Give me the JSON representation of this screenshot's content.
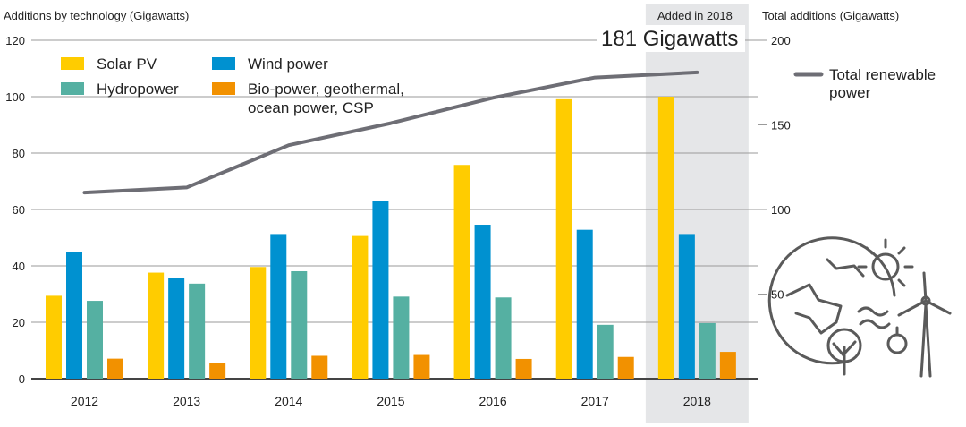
{
  "chart_data": {
    "type": "bar",
    "left_axis_label": "Additions by technology (Gigawatts)",
    "right_axis_label": "Total additions (Gigawatts)",
    "highlight_label": "Added in 2018",
    "highlight_value_text": "181 Gigawatts",
    "categories": [
      "2012",
      "2013",
      "2014",
      "2015",
      "2016",
      "2017",
      "2018"
    ],
    "left_ylim": [
      0,
      120
    ],
    "left_ticks": [
      0,
      20,
      40,
      60,
      80,
      100,
      120
    ],
    "right_ylim": [
      0,
      200
    ],
    "right_ticks": [
      50,
      100,
      150,
      200
    ],
    "series": [
      {
        "name": "Solar PV",
        "color": "#ffcc00",
        "values": [
          29.4,
          37.6,
          39.6,
          50.6,
          75.8,
          99.1,
          100.0
        ]
      },
      {
        "name": "Wind power",
        "color": "#0091d0",
        "values": [
          44.9,
          35.7,
          51.3,
          62.9,
          54.6,
          52.8,
          51.3
        ]
      },
      {
        "name": "Hydropower",
        "color": "#55b0a2",
        "values": [
          27.6,
          33.7,
          38.1,
          29.1,
          28.8,
          19.1,
          19.7
        ]
      },
      {
        "name": "Bio-power, geothermal, ocean power, CSP",
        "color": "#f29100",
        "values": [
          7.1,
          5.4,
          8.1,
          8.4,
          7.0,
          7.7,
          9.5
        ]
      }
    ],
    "line_series": {
      "name": "Total renewable power",
      "color": "#6e6e75",
      "axis": "right",
      "values": [
        110,
        113,
        138,
        151,
        166,
        178,
        181
      ]
    },
    "legend_placement": "top-left; line legend right",
    "highlight_category": "2018",
    "grid": true,
    "decoration_icon": "renewable-energy-globe-icon"
  }
}
